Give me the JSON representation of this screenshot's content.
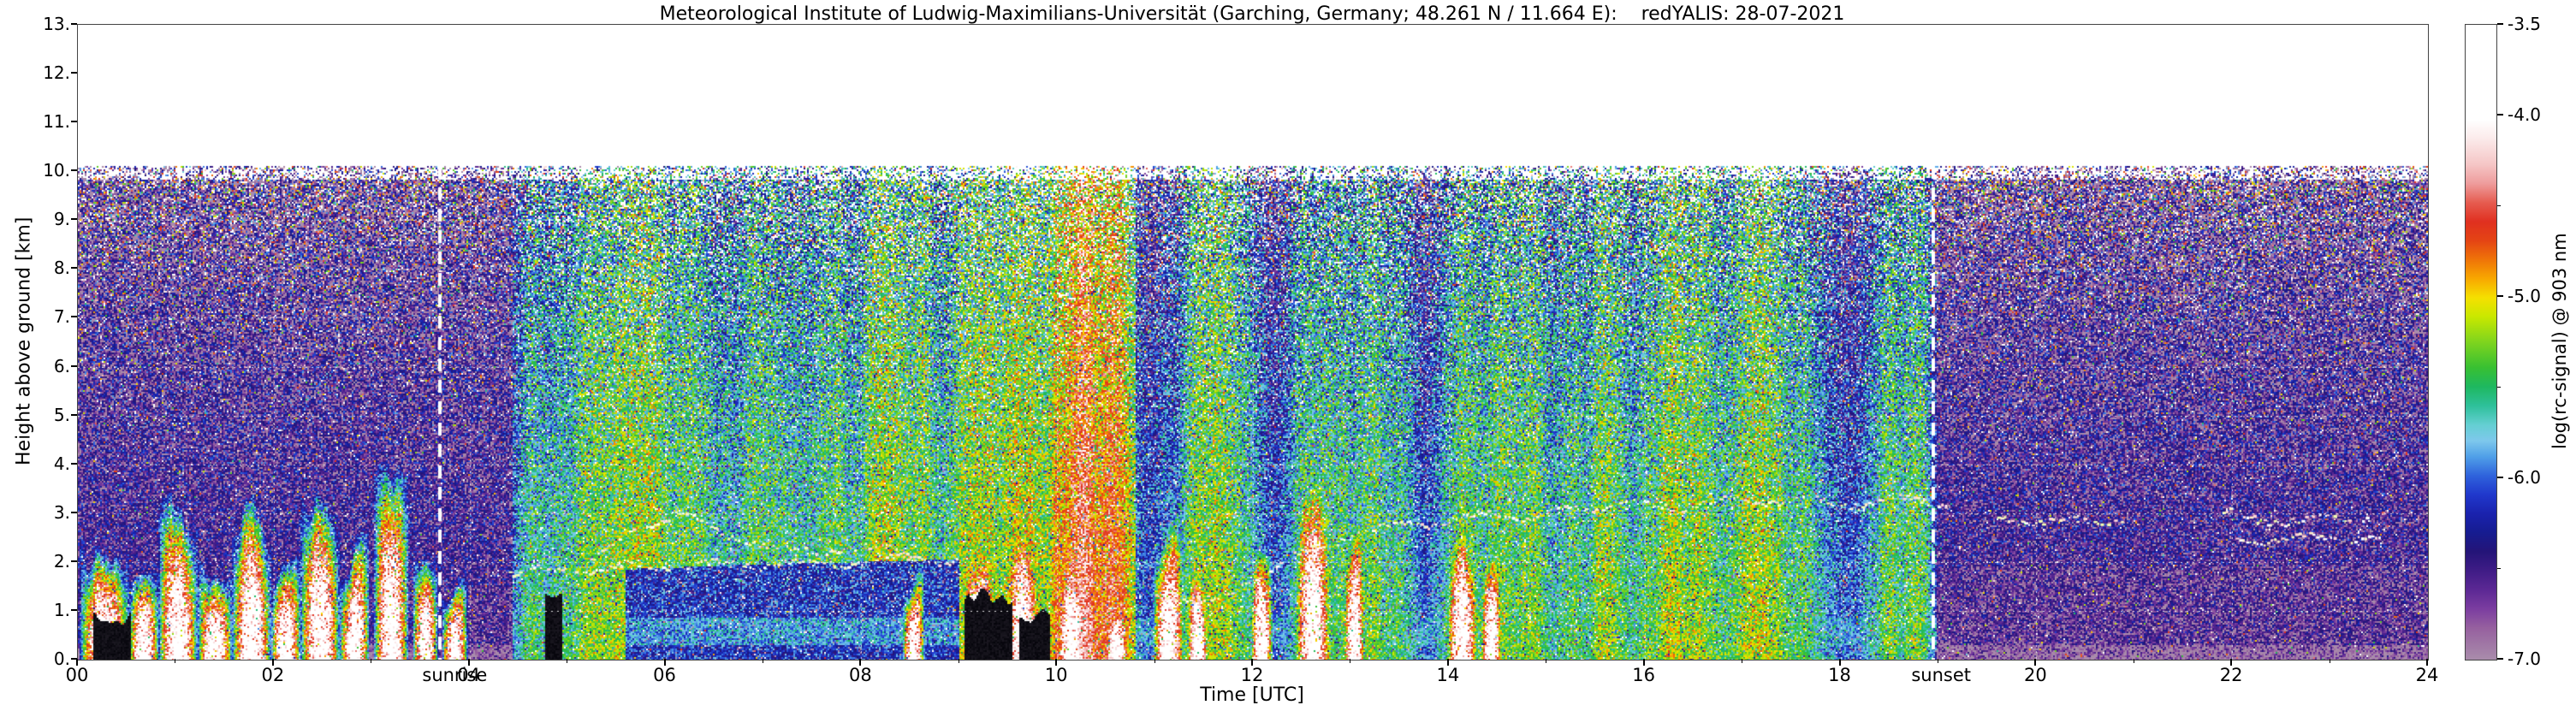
{
  "chart_data": {
    "type": "heatmap",
    "title": "Meteorological Institute of Ludwig-Maximilians-Universität (Garching, Germany; 48.261 N / 11.664 E):    redYALIS: 28-07-2021",
    "xlabel": "Time [UTC]",
    "ylabel": "Height above ground [km]",
    "x_range": [
      0,
      24
    ],
    "y_range": [
      0,
      13
    ],
    "data_top_km": 10.1,
    "x_ticks": [
      "00",
      "02",
      "04",
      "06",
      "08",
      "10",
      "12",
      "14",
      "16",
      "18",
      "20",
      "22",
      "24"
    ],
    "y_ticks": [
      "0.",
      "1.",
      "2.",
      "3.",
      "4.",
      "5.",
      "6.",
      "7.",
      "8.",
      "9.",
      "10.",
      "11.",
      "12.",
      "13."
    ],
    "grid": {
      "horizontal_km": [
        1,
        2,
        3,
        4,
        5,
        6,
        7,
        8,
        9
      ],
      "vertical_hours": [
        2,
        4,
        6,
        8,
        10,
        12,
        14,
        16,
        18,
        20,
        22
      ]
    },
    "annotations": {
      "sunrise": {
        "label": "sunrise",
        "time_utc": 3.7
      },
      "sunset": {
        "label": "sunset",
        "time_utc": 18.95
      }
    },
    "colorbar": {
      "label": "log(rc-signal) @ 903 nm",
      "range": [
        -3.5,
        -7.0
      ],
      "tick_values": [
        -3.5,
        -4.0,
        -5.0,
        -6.0,
        -7.0
      ],
      "tick_labels": [
        "-3.5",
        "-4.0",
        "-5.0",
        "-6.0",
        "-7.0"
      ],
      "minor_tick_values": [
        -4.5,
        -5.5,
        -6.5
      ],
      "stops": [
        [
          0.0,
          "#ffffff"
        ],
        [
          0.15,
          "#ffffff"
        ],
        [
          0.18,
          "#fbeaea"
        ],
        [
          0.22,
          "#f5c6c6"
        ],
        [
          0.25,
          "#ee9c9c"
        ],
        [
          0.28,
          "#e65c50"
        ],
        [
          0.31,
          "#e03020"
        ],
        [
          0.34,
          "#e44414"
        ],
        [
          0.37,
          "#ef7408"
        ],
        [
          0.4,
          "#f8a800"
        ],
        [
          0.43,
          "#f5e000"
        ],
        [
          0.46,
          "#c8e800"
        ],
        [
          0.5,
          "#7ed41e"
        ],
        [
          0.54,
          "#38c032"
        ],
        [
          0.57,
          "#1eb860"
        ],
        [
          0.6,
          "#2ec09a"
        ],
        [
          0.63,
          "#64cfd2"
        ],
        [
          0.655,
          "#7ec8ec"
        ],
        [
          0.68,
          "#50a0e8"
        ],
        [
          0.71,
          "#2f63dc"
        ],
        [
          0.74,
          "#2038cc"
        ],
        [
          0.77,
          "#1a22ae"
        ],
        [
          0.8,
          "#161c90"
        ],
        [
          0.83,
          "#241478"
        ],
        [
          0.86,
          "#3f1c86"
        ],
        [
          0.89,
          "#5c2894"
        ],
        [
          0.92,
          "#7b3da0"
        ],
        [
          0.95,
          "#96609f"
        ],
        [
          1.0,
          "#a98cab"
        ]
      ]
    },
    "features": {
      "day_span": [
        4.55,
        18.95
      ],
      "night_base_v": -6.45,
      "haze": {
        "v_min": -6.05,
        "v_amp": 1.0,
        "z_decay": 0.045
      },
      "bl_wedge": {
        "t0": 5.6,
        "t1": 9.0,
        "heights": [
          [
            5.6,
            1.85
          ],
          [
            7.0,
            1.95
          ],
          [
            9.0,
            2.05
          ]
        ],
        "v": -6.2
      },
      "rain": {
        "t0": 9.0,
        "t1": 10.8,
        "v_base": -5.45,
        "v_amp": 1.3,
        "z_decay": 0.05
      },
      "teal_column": {
        "t0": 16.95,
        "t1": 17.45,
        "v": -5.8
      },
      "cloud_core_v": -3.45,
      "clouds": [
        [
          0.05,
          0.5,
          2.7
        ],
        [
          0.55,
          0.8,
          1.9
        ],
        [
          0.85,
          1.2,
          3.3
        ],
        [
          1.25,
          1.55,
          2.5
        ],
        [
          1.6,
          1.95,
          3.7
        ],
        [
          2.0,
          2.25,
          2.1
        ],
        [
          2.3,
          2.65,
          3.4
        ],
        [
          2.7,
          2.95,
          2.7
        ],
        [
          3.05,
          3.35,
          3.5
        ],
        [
          3.45,
          3.65,
          1.9
        ],
        [
          3.75,
          3.95,
          1.6
        ],
        [
          8.45,
          8.62,
          2.1
        ],
        [
          9.05,
          9.35,
          2.4
        ],
        [
          9.5,
          9.8,
          2.7
        ],
        [
          10.0,
          10.3,
          2.3
        ],
        [
          10.5,
          10.72,
          1.9
        ],
        [
          11.0,
          11.28,
          3.2
        ],
        [
          11.35,
          11.52,
          2.3
        ],
        [
          12.0,
          12.18,
          2.6
        ],
        [
          12.45,
          12.78,
          3.6
        ],
        [
          12.95,
          13.12,
          2.8
        ],
        [
          14.0,
          14.28,
          3.9
        ],
        [
          14.35,
          14.52,
          2.5
        ]
      ],
      "black_patches": [
        [
          9.05,
          9.55,
          1.3
        ],
        [
          9.62,
          9.92,
          0.9
        ],
        [
          4.78,
          4.94,
          2.1
        ],
        [
          0.15,
          0.55,
          0.9
        ]
      ],
      "purple_zones": [
        [
          16.9,
          24,
          1.9,
          -6.62
        ],
        [
          19.0,
          24,
          2.4,
          -6.52
        ],
        [
          3.95,
          5.6,
          1.5,
          -6.6
        ]
      ],
      "bottom_strip": {
        "z": 0.3,
        "v": -6.85
      },
      "layer_lines": [
        {
          "points": [
            [
              4.4,
              1.8
            ],
            [
              5.5,
              1.9
            ],
            [
              6.5,
              1.95
            ],
            [
              7.5,
              2.0
            ],
            [
              8.5,
              2.1
            ],
            [
              9.0,
              2.05
            ]
          ]
        },
        {
          "points": [
            [
              5.2,
              2.0
            ],
            [
              5.7,
              2.7
            ],
            [
              6.1,
              3.0
            ],
            [
              6.6,
              2.6
            ],
            [
              7.2,
              2.25
            ],
            [
              8.0,
              2.3
            ],
            [
              8.6,
              2.2
            ]
          ]
        },
        {
          "points": [
            [
              11.0,
              1.35
            ],
            [
              11.6,
              1.2
            ],
            [
              12.2,
              1.9
            ],
            [
              13.0,
              2.6
            ],
            [
              14.0,
              2.9
            ],
            [
              15.0,
              3.0
            ],
            [
              15.6,
              3.15
            ]
          ]
        },
        {
          "points": [
            [
              15.6,
              3.2
            ],
            [
              16.2,
              3.15
            ],
            [
              16.8,
              3.25
            ],
            [
              17.4,
              3.3
            ],
            [
              18.0,
              3.2
            ],
            [
              18.6,
              3.3
            ],
            [
              19.1,
              3.2
            ]
          ]
        },
        {
          "points": [
            [
              19.6,
              2.95
            ],
            [
              20.2,
              2.8
            ],
            [
              20.9,
              2.9
            ]
          ]
        },
        {
          "points": [
            [
              21.9,
              3.0
            ],
            [
              22.6,
              2.85
            ],
            [
              23.4,
              3.0
            ]
          ]
        },
        {
          "points": [
            [
              22.0,
              2.45
            ],
            [
              23.0,
              2.55
            ],
            [
              23.6,
              2.5
            ]
          ]
        }
      ]
    }
  }
}
